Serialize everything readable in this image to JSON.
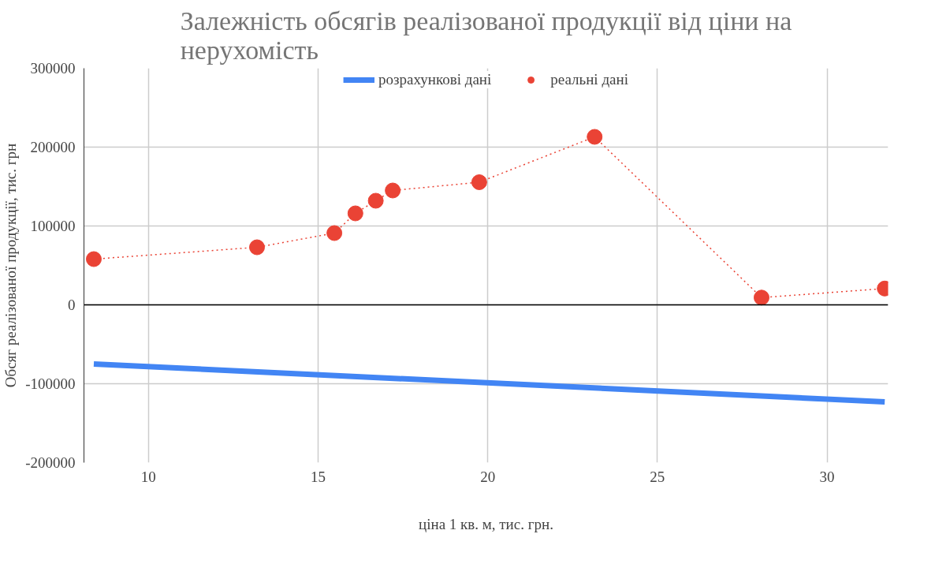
{
  "chart_data": {
    "type": "line",
    "title": "Залежність обсягів реалізованої продукції від ціни на нерухомість",
    "xlabel": "ціна 1 кв. м, тис. грн.",
    "ylabel": "Обсяг реалізованої продукції, тис. грн",
    "xlim": [
      8.1,
      31.8
    ],
    "xticks": [
      10,
      15,
      20,
      25,
      30
    ],
    "ylim": [
      -200000,
      300000
    ],
    "yticks": [
      -200000,
      -100000,
      0,
      100000,
      200000,
      300000
    ],
    "grid": true,
    "legend": "top",
    "ref_lines": [
      {
        "axis": "y",
        "value": 0,
        "color": "#000000"
      }
    ],
    "series": [
      {
        "name": "розрахункові дані",
        "color": "#4285f4",
        "marker": "none",
        "line_style": "solid",
        "x": [
          8.39,
          31.7
        ],
        "values": [
          -75000,
          -123000
        ]
      },
      {
        "name": "реальні дані",
        "type": "line",
        "color": "#ea4335",
        "marker": "circle",
        "line_style": "dotted",
        "x": [
          8.39,
          13.2,
          15.48,
          16.1,
          16.7,
          17.2,
          19.75,
          23.15,
          28.07,
          31.7
        ],
        "values": [
          58000,
          73000,
          91000,
          116000,
          132000,
          145000,
          155500,
          213000,
          9200,
          20700
        ]
      }
    ]
  }
}
